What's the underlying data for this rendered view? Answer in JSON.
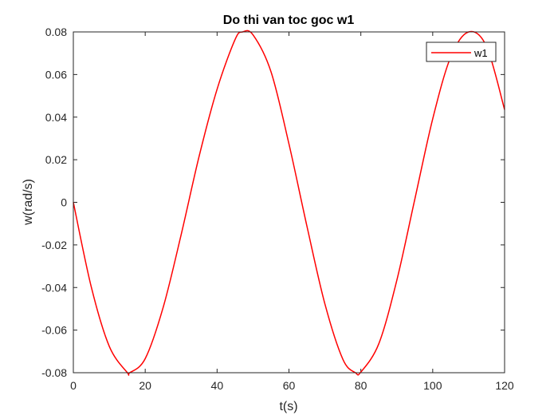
{
  "chart_data": {
    "type": "line",
    "title": "Do thi van toc goc w1",
    "xlabel": "t(s)",
    "ylabel": "w(rad/s)",
    "xlim": [
      0,
      120
    ],
    "ylim": [
      -0.08,
      0.08
    ],
    "xticks": [
      0,
      20,
      40,
      60,
      80,
      100,
      120
    ],
    "yticks": [
      -0.08,
      -0.06,
      -0.04,
      -0.02,
      0,
      0.02,
      0.04,
      0.06,
      0.08
    ],
    "xtick_labels": [
      "0",
      "20",
      "40",
      "60",
      "80",
      "100",
      "120"
    ],
    "ytick_labels": [
      "-0.08",
      "-0.06",
      "-0.04",
      "-0.02",
      "0",
      "0.02",
      "0.04",
      "0.06",
      "0.08"
    ],
    "grid": false,
    "legend_position": "top-right",
    "series": [
      {
        "name": "w1",
        "color": "#ff0000",
        "x": [
          0,
          5,
          10,
          15,
          15.7,
          20,
          25,
          30,
          35,
          40,
          45,
          47.1,
          50,
          55,
          60,
          65,
          70,
          75,
          78.5,
          80,
          85,
          90,
          95,
          100,
          105,
          110,
          115,
          120
        ],
        "y": [
          0,
          -0.0398,
          -0.0676,
          -0.0799,
          -0.08,
          -0.0734,
          -0.0493,
          -0.0152,
          0.0216,
          0.0531,
          0.0764,
          0.08,
          0.0786,
          0.0613,
          0.0274,
          -0.0112,
          -0.0477,
          -0.0737,
          -0.08,
          -0.0797,
          -0.0664,
          -0.0367,
          0.0013,
          0.0392,
          0.0682,
          0.08,
          0.0731,
          0.0435
        ]
      }
    ]
  }
}
